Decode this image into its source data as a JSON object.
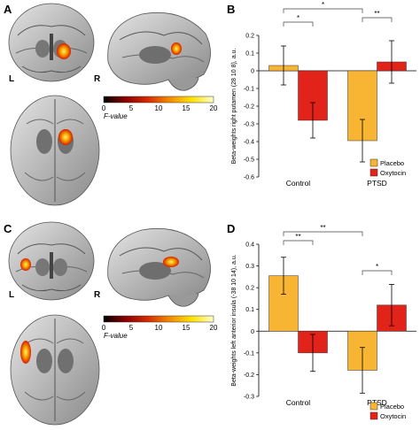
{
  "panels": {
    "A": "A",
    "B": "B",
    "C": "C",
    "D": "D"
  },
  "brain_labels": {
    "A": {
      "left": "L",
      "right": "R"
    },
    "C": {
      "left": "L",
      "right": "R"
    }
  },
  "colorbar": {
    "label": "F-value",
    "ticks": [
      "0",
      "5",
      "10",
      "15",
      "20"
    ],
    "colors": [
      "#000000",
      "#8b0000",
      "#d42a00",
      "#f28c00",
      "#ffe100",
      "#ffffcc"
    ]
  },
  "colors": {
    "placebo": "#f7b533",
    "oxytocin": "#e2231a",
    "activation": "#f5a000"
  },
  "chart_data": [
    {
      "type": "bar",
      "panel": "B",
      "categories": [
        "Control",
        "PTSD"
      ],
      "series": [
        {
          "name": "Placebo",
          "values": [
            0.03,
            -0.395
          ],
          "errors": [
            0.11,
            0.12
          ]
        },
        {
          "name": "Oxytocin",
          "values": [
            -0.28,
            0.05
          ],
          "errors": [
            0.1,
            0.12
          ]
        }
      ],
      "ylabel": "Beta-weights right putamen (28 10 8), a.u.",
      "ylim": [
        -0.6,
        0.2
      ],
      "yticks": [
        "0.2",
        "0.1",
        "0",
        "-0.1",
        "-0.2",
        "-0.3",
        "-0.4",
        "-0.5",
        "-0.6"
      ],
      "significance": [
        {
          "label": "*",
          "between": "Control Placebo vs Control Oxytocin"
        },
        {
          "label": "**",
          "between": "PTSD Placebo vs PTSD Oxytocin"
        },
        {
          "label": "*",
          "between": "Control Placebo vs PTSD Placebo"
        }
      ],
      "legend": [
        "Placebo",
        "Oxytocin"
      ],
      "legend_position": "bottom-right"
    },
    {
      "type": "bar",
      "panel": "D",
      "categories": [
        "Control",
        "PTSD"
      ],
      "series": [
        {
          "name": "Placebo",
          "values": [
            0.255,
            -0.18
          ],
          "errors": [
            0.085,
            0.105
          ]
        },
        {
          "name": "Oxytocin",
          "values": [
            -0.1,
            0.12
          ],
          "errors": [
            0.085,
            0.095
          ]
        }
      ],
      "ylabel": "Beta-weights left anterior insula (-38 10 14), a.u.",
      "ylim": [
        -0.3,
        0.4
      ],
      "yticks": [
        "0.4",
        "0.3",
        "0.2",
        "0.1",
        "0",
        "-0.1",
        "-0.2",
        "-0.3"
      ],
      "significance": [
        {
          "label": "**",
          "between": "Control Placebo vs Control Oxytocin"
        },
        {
          "label": "*",
          "between": "PTSD Placebo vs PTSD Oxytocin"
        },
        {
          "label": "**",
          "between": "Control Placebo vs PTSD Placebo"
        }
      ],
      "legend": [
        "Placebo",
        "Oxytocin"
      ],
      "legend_position": "bottom-right"
    }
  ]
}
